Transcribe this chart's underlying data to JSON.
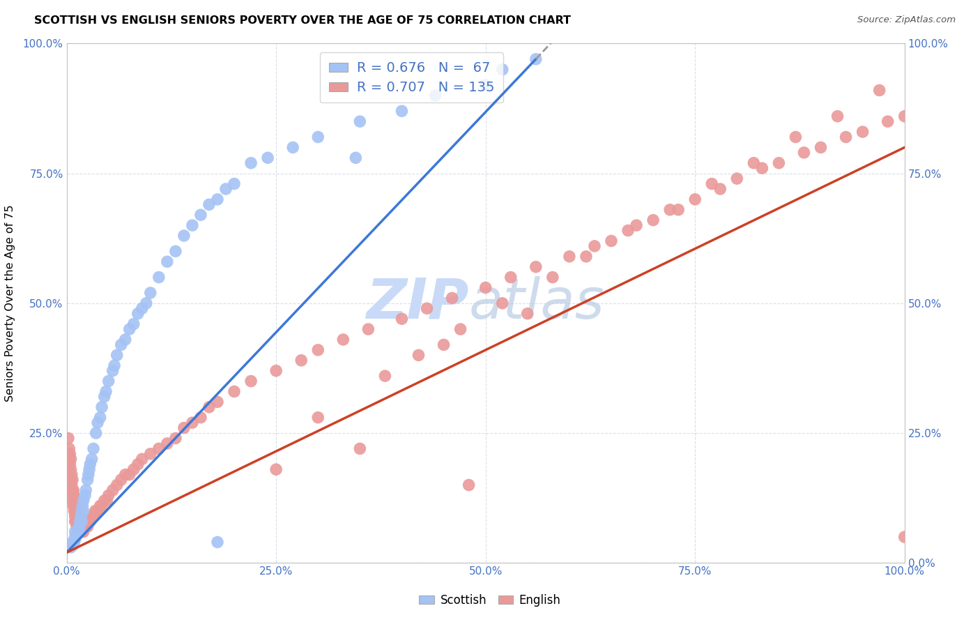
{
  "title": "SCOTTISH VS ENGLISH SENIORS POVERTY OVER THE AGE OF 75 CORRELATION CHART",
  "source": "Source: ZipAtlas.com",
  "ylabel": "Seniors Poverty Over the Age of 75",
  "xlim": [
    0,
    1.0
  ],
  "ylim": [
    0,
    1.0
  ],
  "scottish_R": 0.676,
  "scottish_N": 67,
  "english_R": 0.707,
  "english_N": 135,
  "scottish_color": "#a4c2f4",
  "english_color": "#ea9999",
  "scottish_line_color": "#3c78d8",
  "english_line_color": "#cc4125",
  "watermark_color": "#c9daf8",
  "tick_color": "#4472c4",
  "scottish_x": [
    0.005,
    0.007,
    0.008,
    0.009,
    0.01,
    0.01,
    0.01,
    0.012,
    0.013,
    0.014,
    0.015,
    0.015,
    0.016,
    0.017,
    0.018,
    0.018,
    0.019,
    0.02,
    0.02,
    0.022,
    0.023,
    0.025,
    0.026,
    0.027,
    0.028,
    0.03,
    0.032,
    0.035,
    0.037,
    0.04,
    0.042,
    0.045,
    0.047,
    0.05,
    0.055,
    0.057,
    0.06,
    0.065,
    0.07,
    0.075,
    0.08,
    0.085,
    0.09,
    0.095,
    0.1,
    0.11,
    0.12,
    0.13,
    0.14,
    0.15,
    0.16,
    0.17,
    0.18,
    0.19,
    0.2,
    0.22,
    0.24,
    0.27,
    0.3,
    0.35,
    0.4,
    0.44,
    0.5,
    0.52,
    0.56,
    0.345,
    0.18
  ],
  "scottish_y": [
    0.03,
    0.04,
    0.035,
    0.04,
    0.05,
    0.045,
    0.06,
    0.055,
    0.06,
    0.065,
    0.07,
    0.06,
    0.08,
    0.09,
    0.1,
    0.08,
    0.11,
    0.12,
    0.1,
    0.13,
    0.14,
    0.16,
    0.17,
    0.18,
    0.19,
    0.2,
    0.22,
    0.25,
    0.27,
    0.28,
    0.3,
    0.32,
    0.33,
    0.35,
    0.37,
    0.38,
    0.4,
    0.42,
    0.43,
    0.45,
    0.46,
    0.48,
    0.49,
    0.5,
    0.52,
    0.55,
    0.58,
    0.6,
    0.63,
    0.65,
    0.67,
    0.69,
    0.7,
    0.72,
    0.73,
    0.77,
    0.78,
    0.8,
    0.82,
    0.85,
    0.87,
    0.9,
    0.92,
    0.95,
    0.97,
    0.78,
    0.04
  ],
  "english_x": [
    0.002,
    0.003,
    0.003,
    0.004,
    0.004,
    0.005,
    0.005,
    0.005,
    0.006,
    0.006,
    0.006,
    0.007,
    0.007,
    0.007,
    0.008,
    0.008,
    0.008,
    0.009,
    0.009,
    0.009,
    0.01,
    0.01,
    0.01,
    0.01,
    0.011,
    0.011,
    0.011,
    0.012,
    0.012,
    0.012,
    0.013,
    0.013,
    0.013,
    0.014,
    0.014,
    0.014,
    0.015,
    0.015,
    0.015,
    0.016,
    0.016,
    0.017,
    0.017,
    0.018,
    0.018,
    0.019,
    0.019,
    0.02,
    0.02,
    0.02,
    0.021,
    0.022,
    0.023,
    0.024,
    0.025,
    0.026,
    0.027,
    0.028,
    0.03,
    0.032,
    0.034,
    0.036,
    0.038,
    0.04,
    0.042,
    0.045,
    0.048,
    0.05,
    0.055,
    0.06,
    0.065,
    0.07,
    0.075,
    0.08,
    0.085,
    0.09,
    0.1,
    0.11,
    0.12,
    0.13,
    0.14,
    0.15,
    0.16,
    0.17,
    0.18,
    0.2,
    0.22,
    0.25,
    0.28,
    0.3,
    0.33,
    0.36,
    0.4,
    0.43,
    0.46,
    0.5,
    0.53,
    0.56,
    0.6,
    0.63,
    0.65,
    0.68,
    0.7,
    0.73,
    0.75,
    0.78,
    0.8,
    0.83,
    0.85,
    0.88,
    0.9,
    0.93,
    0.95,
    0.98,
    1.0,
    0.45,
    0.3,
    0.38,
    0.42,
    0.47,
    0.52,
    0.58,
    0.62,
    0.67,
    0.72,
    0.77,
    0.82,
    0.87,
    0.92,
    0.97,
    1.0,
    0.35,
    0.25,
    0.55,
    0.48
  ],
  "english_y": [
    0.24,
    0.22,
    0.2,
    0.21,
    0.19,
    0.2,
    0.18,
    0.16,
    0.17,
    0.15,
    0.14,
    0.16,
    0.14,
    0.12,
    0.14,
    0.13,
    0.11,
    0.13,
    0.12,
    0.1,
    0.12,
    0.11,
    0.09,
    0.08,
    0.1,
    0.09,
    0.08,
    0.1,
    0.09,
    0.07,
    0.09,
    0.08,
    0.07,
    0.09,
    0.08,
    0.07,
    0.09,
    0.08,
    0.07,
    0.08,
    0.07,
    0.08,
    0.07,
    0.08,
    0.07,
    0.07,
    0.06,
    0.08,
    0.07,
    0.06,
    0.07,
    0.07,
    0.07,
    0.07,
    0.07,
    0.08,
    0.08,
    0.08,
    0.09,
    0.09,
    0.1,
    0.1,
    0.1,
    0.11,
    0.11,
    0.12,
    0.12,
    0.13,
    0.14,
    0.15,
    0.16,
    0.17,
    0.17,
    0.18,
    0.19,
    0.2,
    0.21,
    0.22,
    0.23,
    0.24,
    0.26,
    0.27,
    0.28,
    0.3,
    0.31,
    0.33,
    0.35,
    0.37,
    0.39,
    0.41,
    0.43,
    0.45,
    0.47,
    0.49,
    0.51,
    0.53,
    0.55,
    0.57,
    0.59,
    0.61,
    0.62,
    0.65,
    0.66,
    0.68,
    0.7,
    0.72,
    0.74,
    0.76,
    0.77,
    0.79,
    0.8,
    0.82,
    0.83,
    0.85,
    0.86,
    0.42,
    0.28,
    0.36,
    0.4,
    0.45,
    0.5,
    0.55,
    0.59,
    0.64,
    0.68,
    0.73,
    0.77,
    0.82,
    0.86,
    0.91,
    0.05,
    0.22,
    0.18,
    0.48,
    0.15
  ]
}
